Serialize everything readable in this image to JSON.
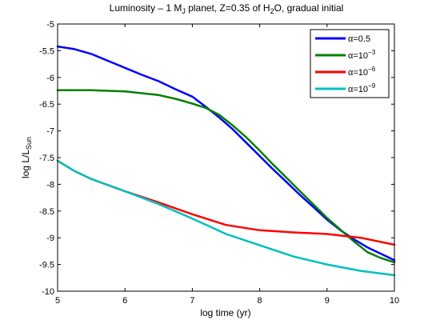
{
  "chart_data": {
    "type": "line",
    "title": {
      "pre": "Luminosity – 1 M",
      "sub1": "J",
      "mid": " planet, Z=0.35 of H",
      "sub2": "2",
      "post": "O, gradual initial"
    },
    "xlabel": "log time (yr)",
    "ylabel": {
      "main": "log L/L",
      "sub": "Sun"
    },
    "xlim": [
      5,
      10
    ],
    "ylim": [
      -10,
      -5
    ],
    "xticks": [
      "5",
      "6",
      "7",
      "8",
      "9",
      "10"
    ],
    "yticks": [
      "-5",
      "-5.5",
      "-6",
      "-6.5",
      "-7",
      "-7.5",
      "-8",
      "-8.5",
      "-9",
      "-9.5",
      "-10"
    ],
    "legend_placement": "top-right",
    "series": [
      {
        "name": "α=0.5",
        "base": "α=10",
        "exp": "",
        "color": "#0000ff",
        "points": [
          [
            5.0,
            -5.42
          ],
          [
            5.25,
            -5.47
          ],
          [
            5.5,
            -5.56
          ],
          [
            5.75,
            -5.69
          ],
          [
            6.0,
            -5.82
          ],
          [
            6.25,
            -5.95
          ],
          [
            6.5,
            -6.07
          ],
          [
            6.75,
            -6.22
          ],
          [
            7.0,
            -6.36
          ],
          [
            7.2,
            -6.55
          ],
          [
            7.4,
            -6.75
          ],
          [
            7.6,
            -6.97
          ],
          [
            7.8,
            -7.22
          ],
          [
            8.0,
            -7.47
          ],
          [
            8.2,
            -7.72
          ],
          [
            8.4,
            -7.96
          ],
          [
            8.6,
            -8.2
          ],
          [
            8.8,
            -8.43
          ],
          [
            9.0,
            -8.66
          ],
          [
            9.2,
            -8.86
          ],
          [
            9.4,
            -9.03
          ],
          [
            9.6,
            -9.18
          ],
          [
            9.8,
            -9.3
          ],
          [
            10.0,
            -9.42
          ]
        ]
      },
      {
        "name": "α=10⁻³",
        "base": "α=10",
        "exp": "−3",
        "color": "#008000",
        "points": [
          [
            5.0,
            -6.24
          ],
          [
            5.5,
            -6.24
          ],
          [
            6.0,
            -6.26
          ],
          [
            6.5,
            -6.33
          ],
          [
            6.75,
            -6.4
          ],
          [
            7.0,
            -6.49
          ],
          [
            7.2,
            -6.57
          ],
          [
            7.4,
            -6.7
          ],
          [
            7.6,
            -6.9
          ],
          [
            7.8,
            -7.12
          ],
          [
            8.0,
            -7.37
          ],
          [
            8.2,
            -7.63
          ],
          [
            8.4,
            -7.88
          ],
          [
            8.6,
            -8.13
          ],
          [
            8.8,
            -8.38
          ],
          [
            9.0,
            -8.63
          ],
          [
            9.2,
            -8.85
          ],
          [
            9.4,
            -9.07
          ],
          [
            9.6,
            -9.27
          ],
          [
            9.8,
            -9.38
          ],
          [
            10.0,
            -9.46
          ]
        ]
      },
      {
        "name": "α=10⁻⁶",
        "base": "α=10",
        "exp": "−6",
        "color": "#ff0000",
        "points": [
          [
            5.0,
            -7.56
          ],
          [
            5.25,
            -7.75
          ],
          [
            5.5,
            -7.9
          ],
          [
            6.0,
            -8.13
          ],
          [
            6.5,
            -8.34
          ],
          [
            7.0,
            -8.56
          ],
          [
            7.5,
            -8.76
          ],
          [
            8.0,
            -8.86
          ],
          [
            8.5,
            -8.9
          ],
          [
            9.0,
            -8.93
          ],
          [
            9.5,
            -9.0
          ],
          [
            10.0,
            -9.13
          ]
        ]
      },
      {
        "name": "α=10⁻⁹",
        "base": "α=10",
        "exp": "−9",
        "color": "#00bfbf",
        "points": [
          [
            5.0,
            -7.56
          ],
          [
            5.25,
            -7.75
          ],
          [
            5.5,
            -7.9
          ],
          [
            6.0,
            -8.13
          ],
          [
            6.5,
            -8.37
          ],
          [
            7.0,
            -8.64
          ],
          [
            7.5,
            -8.93
          ],
          [
            8.0,
            -9.14
          ],
          [
            8.5,
            -9.35
          ],
          [
            9.0,
            -9.5
          ],
          [
            9.5,
            -9.62
          ],
          [
            10.0,
            -9.7
          ]
        ]
      }
    ]
  }
}
